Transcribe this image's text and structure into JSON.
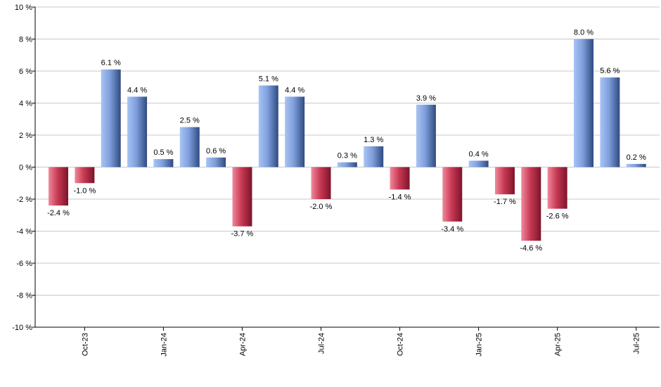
{
  "chart_data": {
    "type": "bar",
    "title": "",
    "xlabel": "",
    "ylabel": "",
    "ylim": [
      -10,
      10
    ],
    "y_ticks": [
      -10,
      -8,
      -6,
      -4,
      -2,
      0,
      2,
      4,
      6,
      8,
      10
    ],
    "y_tick_suffix": " %",
    "grid": true,
    "legend": "none",
    "x_tick_labels": [
      {
        "label": "Oct-23",
        "index": 1
      },
      {
        "label": "Jan-24",
        "index": 4
      },
      {
        "label": "Apr-24",
        "index": 7
      },
      {
        "label": "Jul-24",
        "index": 10
      },
      {
        "label": "Oct-24",
        "index": 13
      },
      {
        "label": "Jan-25",
        "index": 16
      },
      {
        "label": "Apr-25",
        "index": 19
      },
      {
        "label": "Jul-25",
        "index": 22
      }
    ],
    "values": [
      -2.4,
      -1.0,
      6.1,
      4.4,
      0.5,
      2.5,
      0.6,
      -3.7,
      5.1,
      4.4,
      -2.0,
      0.3,
      1.3,
      -1.4,
      3.9,
      -3.4,
      0.4,
      -1.7,
      -4.6,
      -2.6,
      8.0,
      5.6,
      0.2
    ],
    "data_labels": [
      "-2.4 %",
      "-1.0 %",
      "6.1 %",
      "4.4 %",
      "0.5 %",
      "2.5 %",
      "0.6 %",
      "-3.7 %",
      "5.1 %",
      "4.4 %",
      "-2.0 %",
      "0.3 %",
      "1.3 %",
      "-1.4 %",
      "3.9 %",
      "-3.4 %",
      "0.4 %",
      "-1.7 %",
      "-4.6 %",
      "-2.6 %",
      "8.0 %",
      "5.6 %",
      "0.2 %"
    ],
    "colors": {
      "positive_light": "#a9c4f5",
      "positive_mid": "#6f93d6",
      "positive_dark": "#2f4a80",
      "negative_light": "#f08a9c",
      "negative_mid": "#c93a55",
      "negative_dark": "#7d1429",
      "grid": "#c8c8c8",
      "axis": "#000000"
    }
  }
}
